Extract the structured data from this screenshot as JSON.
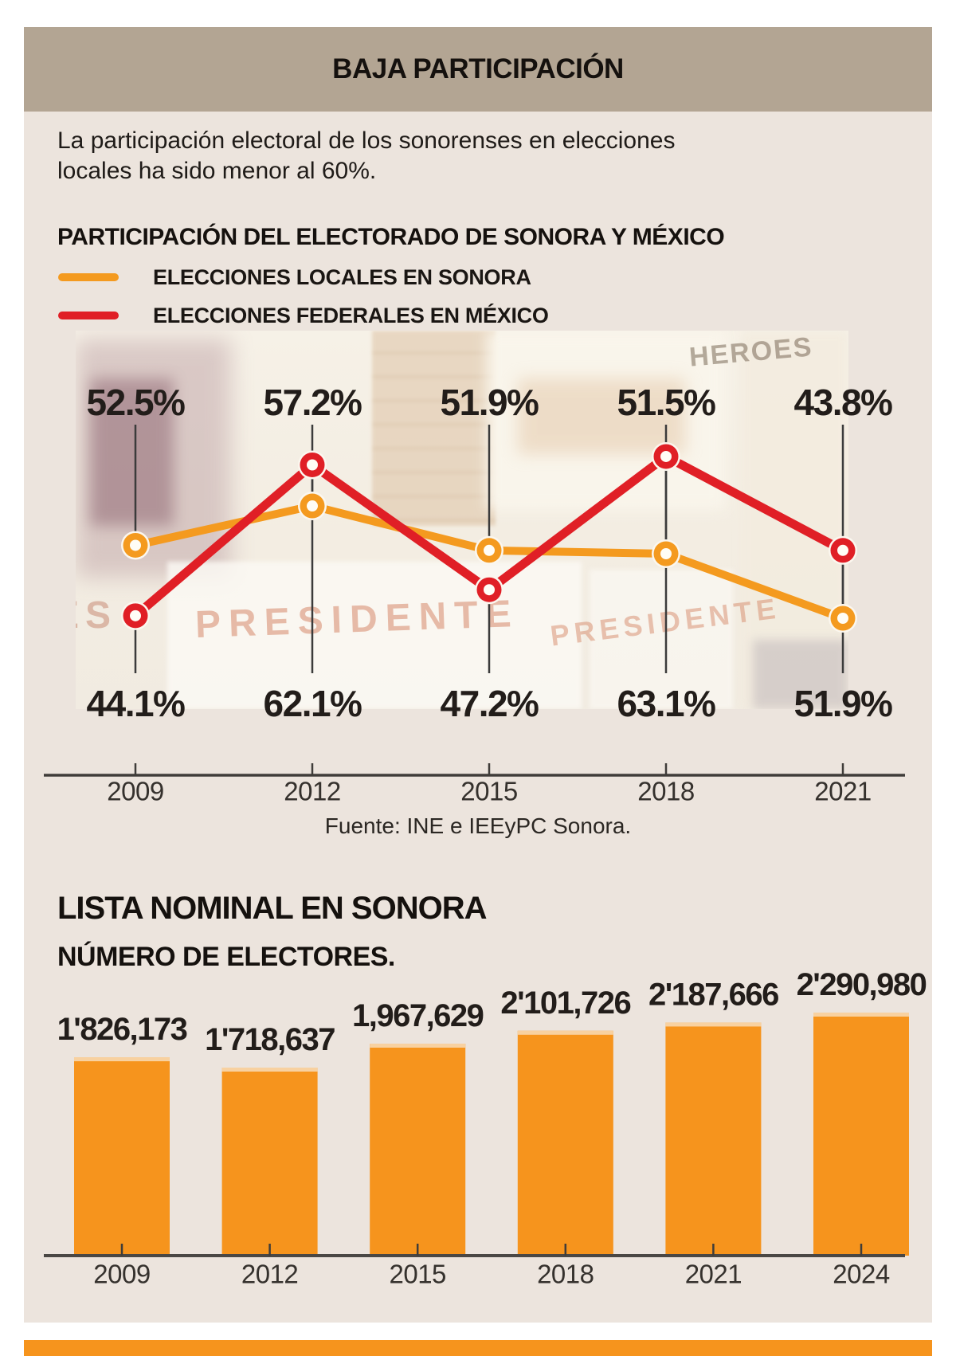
{
  "header": {
    "title": "BAJA PARTICIPACIÓN",
    "bg": "#b3a593"
  },
  "intro": {
    "line1": "La participación electoral de los sonorenses en elecciones",
    "line2": "locales ha sido menor al 60%."
  },
  "photo": {
    "watermarks": [
      "HEROES",
      "PRESIDENTE",
      "PRESIDENTE",
      "ES"
    ]
  },
  "colors": {
    "local_orange": "#f49a1f",
    "federal_red": "#e01f26",
    "bar_orange": "#f6941d",
    "bar_cap": "#f8d1a0",
    "panel_beige": "#ece4dd",
    "header_tan": "#b3a593",
    "text_dark": "#221d1a",
    "axis_gray": "#3f3c39"
  },
  "chart_data": [
    {
      "type": "line",
      "title": "PARTICIPACIÓN DEL ELECTORADO DE SONORA Y MÉXICO",
      "x": [
        "2009",
        "2012",
        "2015",
        "2018",
        "2021"
      ],
      "series": [
        {
          "name": "ELECCIONES LOCALES EN SONORA",
          "color": "#f49a1f",
          "values": [
            52.5,
            57.2,
            51.9,
            51.5,
            43.8
          ],
          "labels": [
            "52.5%",
            "57.2%",
            "51.9%",
            "51.5%",
            "43.8%"
          ],
          "label_position": "top"
        },
        {
          "name": "ELECCIONES FEDERALES EN MÉXICO",
          "color": "#e01f26",
          "values": [
            44.1,
            62.1,
            47.2,
            63.1,
            51.9
          ],
          "labels": [
            "44.1%",
            "62.1%",
            "47.2%",
            "63.1%",
            "51.9%"
          ],
          "label_position": "bottom"
        }
      ],
      "ylim": [
        40,
        66
      ],
      "grid": false,
      "legend_position": "top-left",
      "source": "Fuente: INE e IEEyPC Sonora."
    },
    {
      "type": "bar",
      "title": "LISTA NOMINAL EN SONORA",
      "subtitle": "NÚMERO DE ELECTORES.",
      "categories": [
        "2009",
        "2012",
        "2015",
        "2018",
        "2021",
        "2024"
      ],
      "values": [
        1826173,
        1718637,
        1967629,
        2101726,
        2187666,
        2290980
      ],
      "value_labels": [
        "1'826,173",
        "1'718,637",
        "1,967,629",
        "2'101,726",
        "2'187,666",
        "2'290,980"
      ],
      "bar_color": "#f6941d"
    }
  ]
}
